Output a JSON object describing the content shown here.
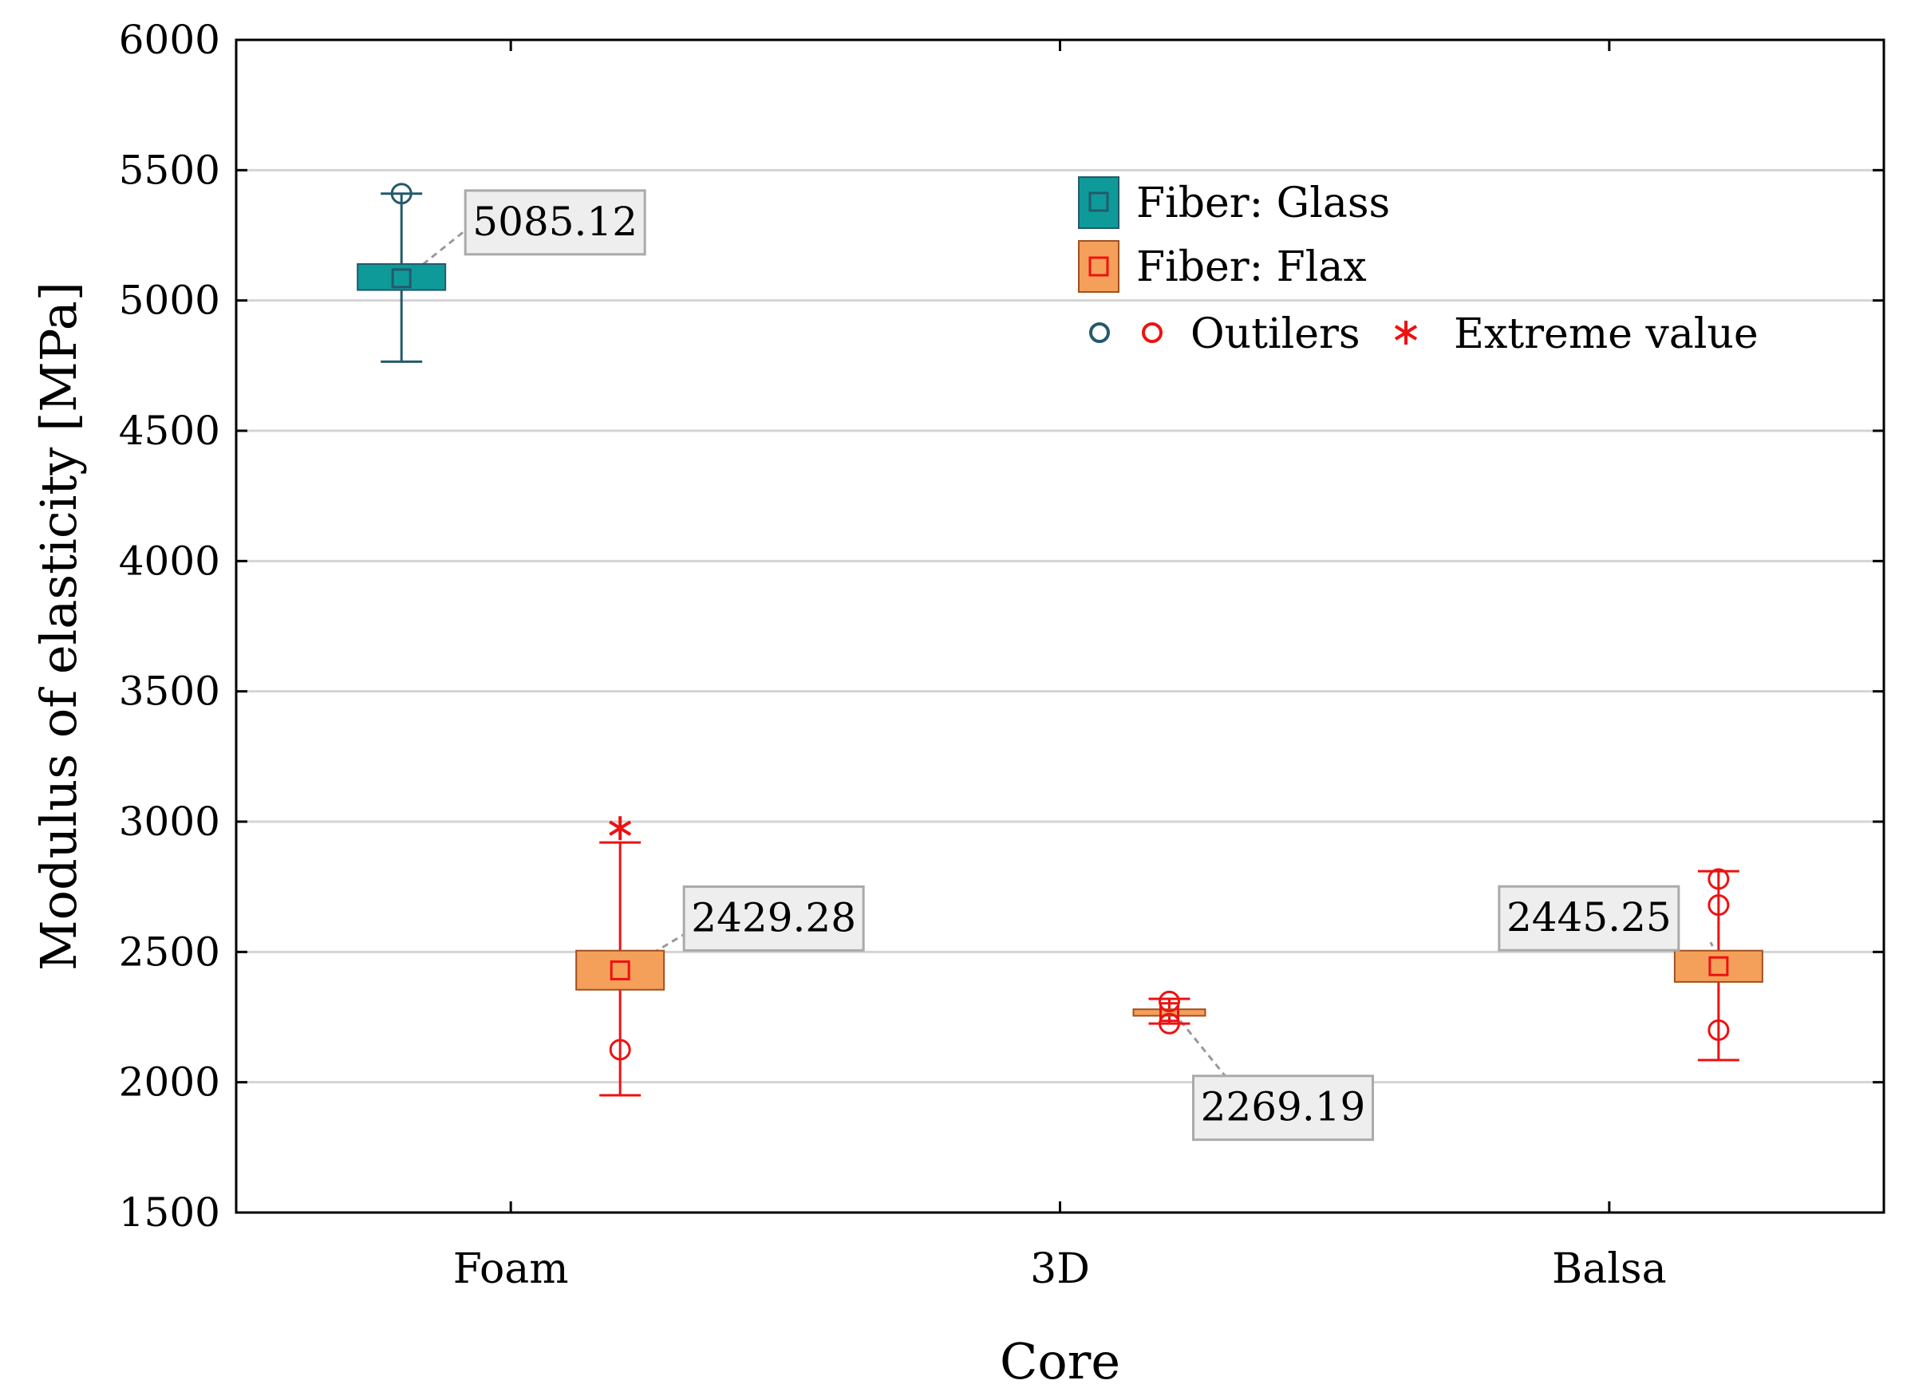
{
  "chart_data": {
    "type": "box",
    "title": "",
    "xlabel": "Core",
    "ylabel": "Modulus of elasticity  [MPa]",
    "categories": [
      "Foam",
      "3D",
      "Balsa"
    ],
    "ylim": [
      1500,
      6000
    ],
    "yticks": [
      1500,
      2000,
      2500,
      3000,
      3500,
      4000,
      4500,
      5000,
      5500,
      6000
    ],
    "grid": true,
    "legend_position": "top-right",
    "legend": {
      "glass_label": "Fiber: Glass",
      "flax_label": "Fiber: Flax",
      "outliers_label": "Outilers",
      "extreme_label": "Extreme value"
    },
    "colors": {
      "glass_fill": "#0f9a9a",
      "glass_stroke": "#245a6a",
      "flax_fill": "#f5a05a",
      "flax_stroke": "#ee1111",
      "outline": "#a05020"
    },
    "series": [
      {
        "name": "Fiber: Glass",
        "boxes": [
          {
            "category": "Foam",
            "median": 5085.12,
            "q1": 5040,
            "q3": 5140,
            "whisker_low": 4765,
            "whisker_high": 5410,
            "outliers": [
              5410
            ],
            "extremes": [],
            "label": "5085.12"
          }
        ]
      },
      {
        "name": "Fiber: Flax",
        "boxes": [
          {
            "category": "Foam",
            "median": 2429.28,
            "q1": 2355,
            "q3": 2505,
            "whisker_low": 1950,
            "whisker_high": 2920,
            "outliers": [
              2125
            ],
            "extremes": [
              2975
            ],
            "label": "2429.28"
          },
          {
            "category": "3D",
            "median": 2269.19,
            "q1": 2255,
            "q3": 2280,
            "whisker_low": 2225,
            "whisker_high": 2320,
            "outliers": [
              2310,
              2225
            ],
            "extremes": [],
            "label": "2269.19"
          },
          {
            "category": "Balsa",
            "median": 2445.25,
            "q1": 2385,
            "q3": 2505,
            "whisker_low": 2085,
            "whisker_high": 2810,
            "outliers": [
              2780,
              2680,
              2200
            ],
            "extremes": [],
            "label": "2445.25"
          }
        ]
      }
    ]
  }
}
